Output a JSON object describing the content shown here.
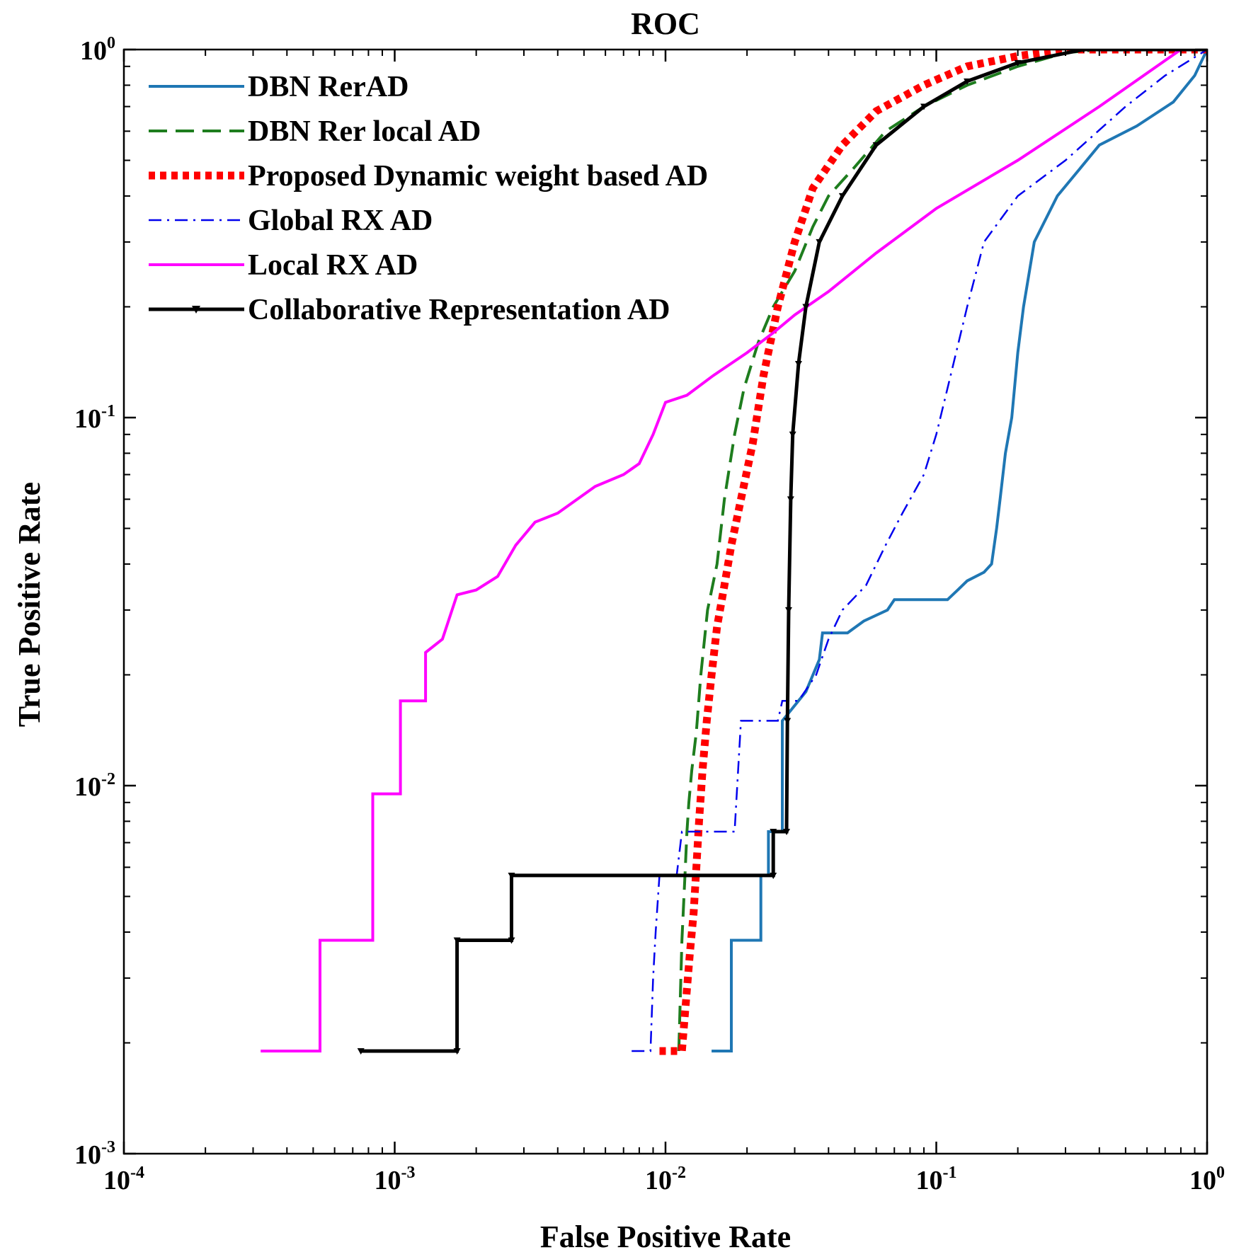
{
  "chart_data": {
    "type": "line",
    "title": "ROC",
    "xlabel": "False Positive Rate",
    "ylabel": "True Positive Rate",
    "xscale": "log",
    "yscale": "log",
    "xlim": [
      0.0001,
      1
    ],
    "ylim": [
      0.001,
      1
    ],
    "grid": false,
    "legend_position": "top-left",
    "x_ticks": [
      {
        "base": "10",
        "exp": "-4",
        "value": 0.0001
      },
      {
        "base": "10",
        "exp": "-3",
        "value": 0.001
      },
      {
        "base": "10",
        "exp": "-2",
        "value": 0.01
      },
      {
        "base": "10",
        "exp": "-1",
        "value": 0.1
      },
      {
        "base": "10",
        "exp": "0",
        "value": 1
      }
    ],
    "y_ticks": [
      {
        "base": "10",
        "exp": "-3",
        "value": 0.001
      },
      {
        "base": "10",
        "exp": "-2",
        "value": 0.01
      },
      {
        "base": "10",
        "exp": "-1",
        "value": 0.1
      },
      {
        "base": "10",
        "exp": "0",
        "value": 1
      }
    ],
    "series": [
      {
        "name": "DBN RerAD",
        "color": "#1f77b4",
        "style": "solid",
        "points": [
          [
            0.0148,
            0.0019
          ],
          [
            0.0175,
            0.0019
          ],
          [
            0.0175,
            0.0038
          ],
          [
            0.0225,
            0.0038
          ],
          [
            0.0225,
            0.0057
          ],
          [
            0.024,
            0.0057
          ],
          [
            0.024,
            0.0075
          ],
          [
            0.027,
            0.0075
          ],
          [
            0.027,
            0.015
          ],
          [
            0.033,
            0.018
          ],
          [
            0.037,
            0.022
          ],
          [
            0.038,
            0.026
          ],
          [
            0.047,
            0.026
          ],
          [
            0.054,
            0.028
          ],
          [
            0.066,
            0.03
          ],
          [
            0.07,
            0.032
          ],
          [
            0.11,
            0.032
          ],
          [
            0.12,
            0.034
          ],
          [
            0.13,
            0.036
          ],
          [
            0.15,
            0.038
          ],
          [
            0.16,
            0.04
          ],
          [
            0.167,
            0.05
          ],
          [
            0.172,
            0.06
          ],
          [
            0.18,
            0.08
          ],
          [
            0.19,
            0.1
          ],
          [
            0.2,
            0.15
          ],
          [
            0.21,
            0.2
          ],
          [
            0.23,
            0.3
          ],
          [
            0.28,
            0.4
          ],
          [
            0.4,
            0.55
          ],
          [
            0.55,
            0.62
          ],
          [
            0.75,
            0.72
          ],
          [
            0.9,
            0.85
          ],
          [
            1.0,
            1.0
          ]
        ]
      },
      {
        "name": "DBN Rer local AD",
        "color": "#1e7d1e",
        "style": "dashed",
        "points": [
          [
            0.0112,
            0.0019
          ],
          [
            0.0115,
            0.0038
          ],
          [
            0.0118,
            0.0057
          ],
          [
            0.012,
            0.0075
          ],
          [
            0.0122,
            0.009
          ],
          [
            0.0125,
            0.011
          ],
          [
            0.013,
            0.014
          ],
          [
            0.0135,
            0.02
          ],
          [
            0.0143,
            0.03
          ],
          [
            0.0155,
            0.04
          ],
          [
            0.0165,
            0.06
          ],
          [
            0.018,
            0.09
          ],
          [
            0.0195,
            0.12
          ],
          [
            0.022,
            0.16
          ],
          [
            0.025,
            0.2
          ],
          [
            0.03,
            0.25
          ],
          [
            0.035,
            0.33
          ],
          [
            0.04,
            0.4
          ],
          [
            0.05,
            0.48
          ],
          [
            0.065,
            0.6
          ],
          [
            0.09,
            0.7
          ],
          [
            0.13,
            0.8
          ],
          [
            0.2,
            0.9
          ],
          [
            0.3,
            0.98
          ],
          [
            0.4,
            1.0
          ],
          [
            1.0,
            1.0
          ]
        ]
      },
      {
        "name": "Proposed Dynamic weight based AD",
        "color": "#ff0000",
        "style": "dotted",
        "points": [
          [
            0.0095,
            0.0019
          ],
          [
            0.0115,
            0.0019
          ],
          [
            0.012,
            0.0028
          ],
          [
            0.0123,
            0.0035
          ],
          [
            0.0127,
            0.0045
          ],
          [
            0.013,
            0.006
          ],
          [
            0.0133,
            0.008
          ],
          [
            0.0137,
            0.011
          ],
          [
            0.0142,
            0.015
          ],
          [
            0.0148,
            0.02
          ],
          [
            0.0155,
            0.027
          ],
          [
            0.0165,
            0.035
          ],
          [
            0.0175,
            0.045
          ],
          [
            0.019,
            0.06
          ],
          [
            0.021,
            0.085
          ],
          [
            0.023,
            0.13
          ],
          [
            0.026,
            0.2
          ],
          [
            0.03,
            0.3
          ],
          [
            0.035,
            0.42
          ],
          [
            0.045,
            0.55
          ],
          [
            0.06,
            0.68
          ],
          [
            0.09,
            0.8
          ],
          [
            0.13,
            0.9
          ],
          [
            0.2,
            0.96
          ],
          [
            0.3,
            1.0
          ],
          [
            1.0,
            1.0
          ]
        ]
      },
      {
        "name": "Global RX AD",
        "color": "#0000ee",
        "style": "dashdot",
        "points": [
          [
            0.0075,
            0.0019
          ],
          [
            0.0088,
            0.0019
          ],
          [
            0.009,
            0.003
          ],
          [
            0.0092,
            0.004
          ],
          [
            0.0095,
            0.0057
          ],
          [
            0.011,
            0.0057
          ],
          [
            0.0115,
            0.0075
          ],
          [
            0.018,
            0.0075
          ],
          [
            0.019,
            0.015
          ],
          [
            0.026,
            0.015
          ],
          [
            0.027,
            0.017
          ],
          [
            0.031,
            0.017
          ],
          [
            0.036,
            0.02
          ],
          [
            0.04,
            0.025
          ],
          [
            0.045,
            0.03
          ],
          [
            0.055,
            0.035
          ],
          [
            0.065,
            0.045
          ],
          [
            0.075,
            0.055
          ],
          [
            0.09,
            0.07
          ],
          [
            0.1,
            0.09
          ],
          [
            0.11,
            0.12
          ],
          [
            0.13,
            0.2
          ],
          [
            0.15,
            0.3
          ],
          [
            0.2,
            0.4
          ],
          [
            0.3,
            0.5
          ],
          [
            0.5,
            0.7
          ],
          [
            0.7,
            0.85
          ],
          [
            1.0,
            1.0
          ]
        ]
      },
      {
        "name": "Local RX AD",
        "color": "#ff00ff",
        "style": "solid",
        "points": [
          [
            0.00032,
            0.0019
          ],
          [
            0.00053,
            0.0019
          ],
          [
            0.00053,
            0.0038
          ],
          [
            0.00083,
            0.0038
          ],
          [
            0.00083,
            0.0095
          ],
          [
            0.00105,
            0.0095
          ],
          [
            0.00105,
            0.017
          ],
          [
            0.0013,
            0.017
          ],
          [
            0.0013,
            0.023
          ],
          [
            0.0015,
            0.025
          ],
          [
            0.0017,
            0.033
          ],
          [
            0.002,
            0.034
          ],
          [
            0.0024,
            0.037
          ],
          [
            0.0028,
            0.045
          ],
          [
            0.0033,
            0.052
          ],
          [
            0.004,
            0.055
          ],
          [
            0.0055,
            0.065
          ],
          [
            0.007,
            0.07
          ],
          [
            0.008,
            0.075
          ],
          [
            0.009,
            0.09
          ],
          [
            0.01,
            0.11
          ],
          [
            0.012,
            0.115
          ],
          [
            0.015,
            0.13
          ],
          [
            0.02,
            0.15
          ],
          [
            0.025,
            0.17
          ],
          [
            0.03,
            0.19
          ],
          [
            0.04,
            0.22
          ],
          [
            0.06,
            0.28
          ],
          [
            0.1,
            0.37
          ],
          [
            0.2,
            0.5
          ],
          [
            0.4,
            0.7
          ],
          [
            0.8,
            1.0
          ]
        ]
      },
      {
        "name": "Collaborative Representation AD",
        "color": "#000000",
        "style": "solid-triangle",
        "points": [
          [
            0.00075,
            0.0019
          ],
          [
            0.0017,
            0.0019
          ],
          [
            0.0017,
            0.0038
          ],
          [
            0.0027,
            0.0038
          ],
          [
            0.0027,
            0.0057
          ],
          [
            0.025,
            0.0057
          ],
          [
            0.025,
            0.0075
          ],
          [
            0.028,
            0.0075
          ],
          [
            0.0282,
            0.015
          ],
          [
            0.0285,
            0.03
          ],
          [
            0.029,
            0.06
          ],
          [
            0.0295,
            0.09
          ],
          [
            0.031,
            0.14
          ],
          [
            0.033,
            0.2
          ],
          [
            0.037,
            0.3
          ],
          [
            0.045,
            0.4
          ],
          [
            0.06,
            0.55
          ],
          [
            0.09,
            0.7
          ],
          [
            0.13,
            0.82
          ],
          [
            0.2,
            0.92
          ],
          [
            0.35,
            1.0
          ],
          [
            1.0,
            1.0
          ]
        ]
      }
    ]
  }
}
